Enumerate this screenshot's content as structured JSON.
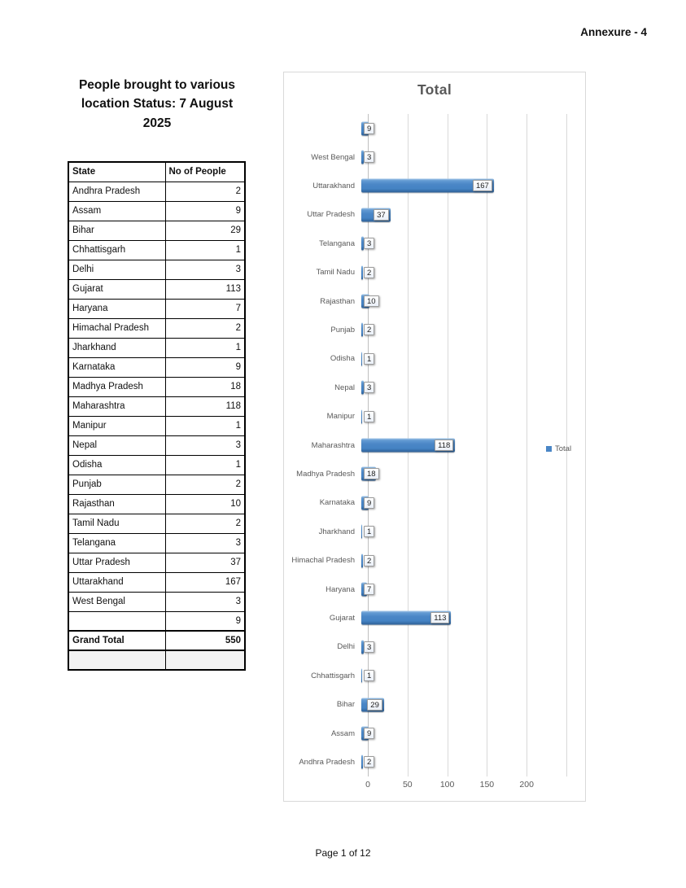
{
  "page": {
    "annexure_label": "Annexure - 4",
    "footer_text": "Page 1 of 12"
  },
  "table": {
    "title": "People brought to various location Status: 7 August 2025",
    "headers": [
      "State",
      "No of People"
    ],
    "rows": [
      {
        "state": "Andhra Pradesh",
        "value": "2"
      },
      {
        "state": "Assam",
        "value": "9"
      },
      {
        "state": "Bihar",
        "value": "29"
      },
      {
        "state": "Chhattisgarh",
        "value": "1"
      },
      {
        "state": "Delhi",
        "value": "3"
      },
      {
        "state": "Gujarat",
        "value": "113"
      },
      {
        "state": "Haryana",
        "value": "7"
      },
      {
        "state": "Himachal Pradesh",
        "value": "2"
      },
      {
        "state": "Jharkhand",
        "value": "1"
      },
      {
        "state": "Karnataka",
        "value": "9"
      },
      {
        "state": "Madhya Pradesh",
        "value": "18"
      },
      {
        "state": "Maharashtra",
        "value": "118"
      },
      {
        "state": "Manipur",
        "value": "1"
      },
      {
        "state": "Nepal",
        "value": "3"
      },
      {
        "state": "Odisha",
        "value": "1"
      },
      {
        "state": "Punjab",
        "value": "2"
      },
      {
        "state": "Rajasthan",
        "value": "10"
      },
      {
        "state": "Tamil Nadu",
        "value": "2"
      },
      {
        "state": "Telangana",
        "value": "3"
      },
      {
        "state": "Uttar Pradesh",
        "value": "37"
      },
      {
        "state": "Uttarakhand",
        "value": "167"
      },
      {
        "state": "West Bengal",
        "value": "3"
      },
      {
        "state": "",
        "value": "9"
      }
    ],
    "grand_total": {
      "label": "Grand Total",
      "value": "550"
    }
  },
  "chart_data": {
    "type": "bar",
    "orientation": "horizontal",
    "title": "Total",
    "categories": [
      "",
      "West Bengal",
      "Uttarakhand",
      "Uttar Pradesh",
      "Telangana",
      "Tamil Nadu",
      "Rajasthan",
      "Punjab",
      "Odisha",
      "Nepal",
      "Manipur",
      "Maharashtra",
      "Madhya Pradesh",
      "Karnataka",
      "Jharkhand",
      "Himachal Pradesh",
      "Haryana",
      "Gujarat",
      "Delhi",
      "Chhattisgarh",
      "Bihar",
      "Assam",
      "Andhra Pradesh"
    ],
    "series": [
      {
        "name": "Total",
        "values": [
          9,
          3,
          167,
          37,
          3,
          2,
          10,
          2,
          1,
          3,
          1,
          118,
          18,
          9,
          1,
          2,
          7,
          113,
          3,
          1,
          29,
          9,
          2
        ]
      }
    ],
    "data_labels": true,
    "xlim": [
      0,
      250
    ],
    "xticks": [
      0,
      50,
      100,
      150,
      200
    ],
    "grid": true,
    "legend": {
      "label": "Total",
      "position": "right"
    },
    "bar_color": "#4a86c6",
    "grid_color": "#d9d9d9",
    "text_color": "#595959"
  }
}
